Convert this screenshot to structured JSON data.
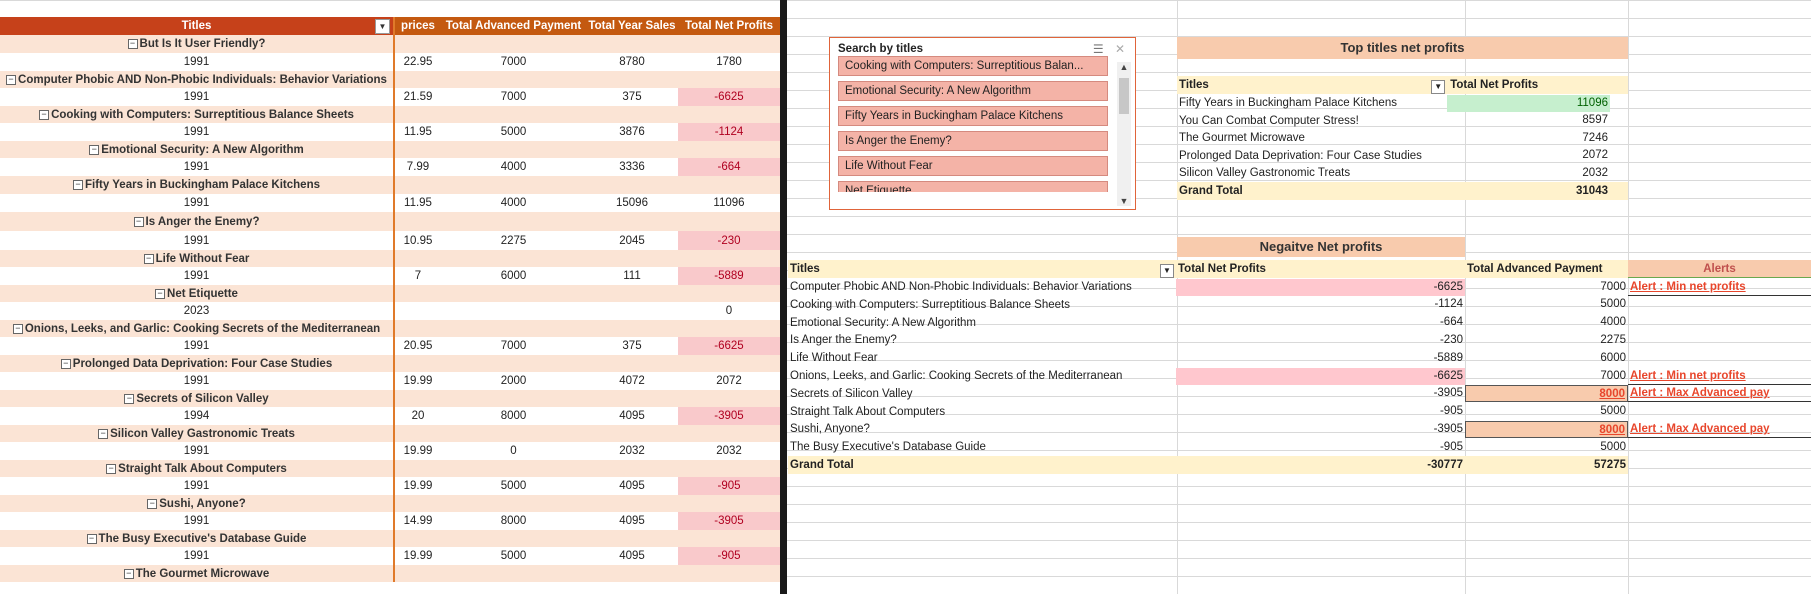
{
  "left_pivot": {
    "headers": [
      "Titles",
      "prices",
      "Total Advanced Payment",
      "Total Year Sales",
      "Total Net Profits"
    ],
    "rows": [
      {
        "title": "But Is It User Friendly?",
        "year": "1991",
        "price": "22.95",
        "adv": "7000",
        "sales": "8780",
        "profit": "1780",
        "neg": false
      },
      {
        "title": "Computer Phobic AND Non-Phobic Individuals: Behavior Variations",
        "year": "1991",
        "price": "21.59",
        "adv": "7000",
        "sales": "375",
        "profit": "-6625",
        "neg": true
      },
      {
        "title": "Cooking with Computers: Surreptitious Balance Sheets",
        "year": "1991",
        "price": "11.95",
        "adv": "5000",
        "sales": "3876",
        "profit": "-1124",
        "neg": true
      },
      {
        "title": "Emotional Security: A New Algorithm",
        "year": "1991",
        "price": "7.99",
        "adv": "4000",
        "sales": "3336",
        "profit": "-664",
        "neg": true
      },
      {
        "title": "Fifty Years in Buckingham Palace Kitchens",
        "year": "1991",
        "price": "11.95",
        "adv": "4000",
        "sales": "15096",
        "profit": "11096",
        "neg": false
      },
      {
        "title": "Is Anger the Enemy?",
        "year": "1991",
        "price": "10.95",
        "adv": "2275",
        "sales": "2045",
        "profit": "-230",
        "neg": true
      },
      {
        "title": "Life Without Fear",
        "year": "1991",
        "price": "7",
        "adv": "6000",
        "sales": "111",
        "profit": "-5889",
        "neg": true
      },
      {
        "title": "Net Etiquette",
        "year": "2023",
        "price": "",
        "adv": "",
        "sales": "",
        "profit": "0",
        "neg": false
      },
      {
        "title": "Onions, Leeks, and Garlic: Cooking Secrets of the Mediterranean",
        "year": "1991",
        "price": "20.95",
        "adv": "7000",
        "sales": "375",
        "profit": "-6625",
        "neg": true
      },
      {
        "title": "Prolonged Data Deprivation: Four Case Studies",
        "year": "1991",
        "price": "19.99",
        "adv": "2000",
        "sales": "4072",
        "profit": "2072",
        "neg": false
      },
      {
        "title": "Secrets of Silicon Valley",
        "year": "1994",
        "price": "20",
        "adv": "8000",
        "sales": "4095",
        "profit": "-3905",
        "neg": true
      },
      {
        "title": "Silicon Valley Gastronomic Treats",
        "year": "1991",
        "price": "19.99",
        "adv": "0",
        "sales": "2032",
        "profit": "2032",
        "neg": false
      },
      {
        "title": "Straight Talk About Computers",
        "year": "1991",
        "price": "19.99",
        "adv": "5000",
        "sales": "4095",
        "profit": "-905",
        "neg": true
      },
      {
        "title": "Sushi, Anyone?",
        "year": "1991",
        "price": "14.99",
        "adv": "8000",
        "sales": "4095",
        "profit": "-3905",
        "neg": true
      },
      {
        "title": "The Busy Executive's Database Guide",
        "year": "1991",
        "price": "19.99",
        "adv": "5000",
        "sales": "4095",
        "profit": "-905",
        "neg": true
      },
      {
        "title": "The Gourmet Microwave",
        "year": null,
        "price": "",
        "adv": "",
        "sales": "",
        "profit": "",
        "neg": false
      }
    ]
  },
  "slicer": {
    "title": "Search by titles",
    "items": [
      "Cooking with Computers: Surreptitious Balan...",
      "Emotional Security: A New Algorithm",
      "Fifty Years in Buckingham Palace Kitchens",
      "Is Anger the Enemy?",
      "Life Without Fear",
      "Net Etiquette"
    ]
  },
  "top_pivot": {
    "title": "Top titles net profits",
    "headers": [
      "Titles",
      "Total Net Profits"
    ],
    "rows": [
      [
        "Fifty Years in Buckingham Palace Kitchens",
        "11096"
      ],
      [
        "You Can Combat Computer Stress!",
        "8597"
      ],
      [
        "The Gourmet Microwave",
        "7246"
      ],
      [
        "Prolonged Data Deprivation: Four Case Studies",
        "2072"
      ],
      [
        "Silicon Valley Gastronomic Treats",
        "2032"
      ]
    ],
    "grand_total_label": "Grand Total",
    "grand_total": "31043"
  },
  "neg_pivot": {
    "title": "Negaitve Net profits",
    "headers": [
      "Titles",
      "Total Net Profits",
      "Total Advanced Payment",
      "Alerts"
    ],
    "rows": [
      {
        "t": "Computer Phobic AND Non-Phobic Individuals: Behavior Variations",
        "p": "-6625",
        "a": "7000",
        "alert": "Alert : Min net profits",
        "hp": true,
        "ha": false
      },
      {
        "t": "Cooking with Computers: Surreptitious Balance Sheets",
        "p": "-1124",
        "a": "5000",
        "alert": "",
        "hp": false,
        "ha": false
      },
      {
        "t": "Emotional Security: A New Algorithm",
        "p": "-664",
        "a": "4000",
        "alert": "",
        "hp": false,
        "ha": false
      },
      {
        "t": "Is Anger the Enemy?",
        "p": "-230",
        "a": "2275",
        "alert": "",
        "hp": false,
        "ha": false
      },
      {
        "t": "Life Without Fear",
        "p": "-5889",
        "a": "6000",
        "alert": "",
        "hp": false,
        "ha": false
      },
      {
        "t": "Onions, Leeks, and Garlic: Cooking Secrets of the Mediterranean",
        "p": "-6625",
        "a": "7000",
        "alert": "Alert : Min net profits",
        "hp": true,
        "ha": false
      },
      {
        "t": "Secrets of Silicon Valley",
        "p": "-3905",
        "a": "8000",
        "alert": "Alert : Max Advanced pay",
        "hp": false,
        "ha": true
      },
      {
        "t": "Straight Talk About Computers",
        "p": "-905",
        "a": "5000",
        "alert": "",
        "hp": false,
        "ha": false
      },
      {
        "t": "Sushi, Anyone?",
        "p": "-3905",
        "a": "8000",
        "alert": "Alert : Max Advanced pay",
        "hp": false,
        "ha": true
      },
      {
        "t": "The Busy Executive's Database Guide",
        "p": "-905",
        "a": "5000",
        "alert": "",
        "hp": false,
        "ha": false
      }
    ],
    "grand_total_label": "Grand Total",
    "grand_total_profit": "-30777",
    "grand_total_adv": "57275"
  }
}
